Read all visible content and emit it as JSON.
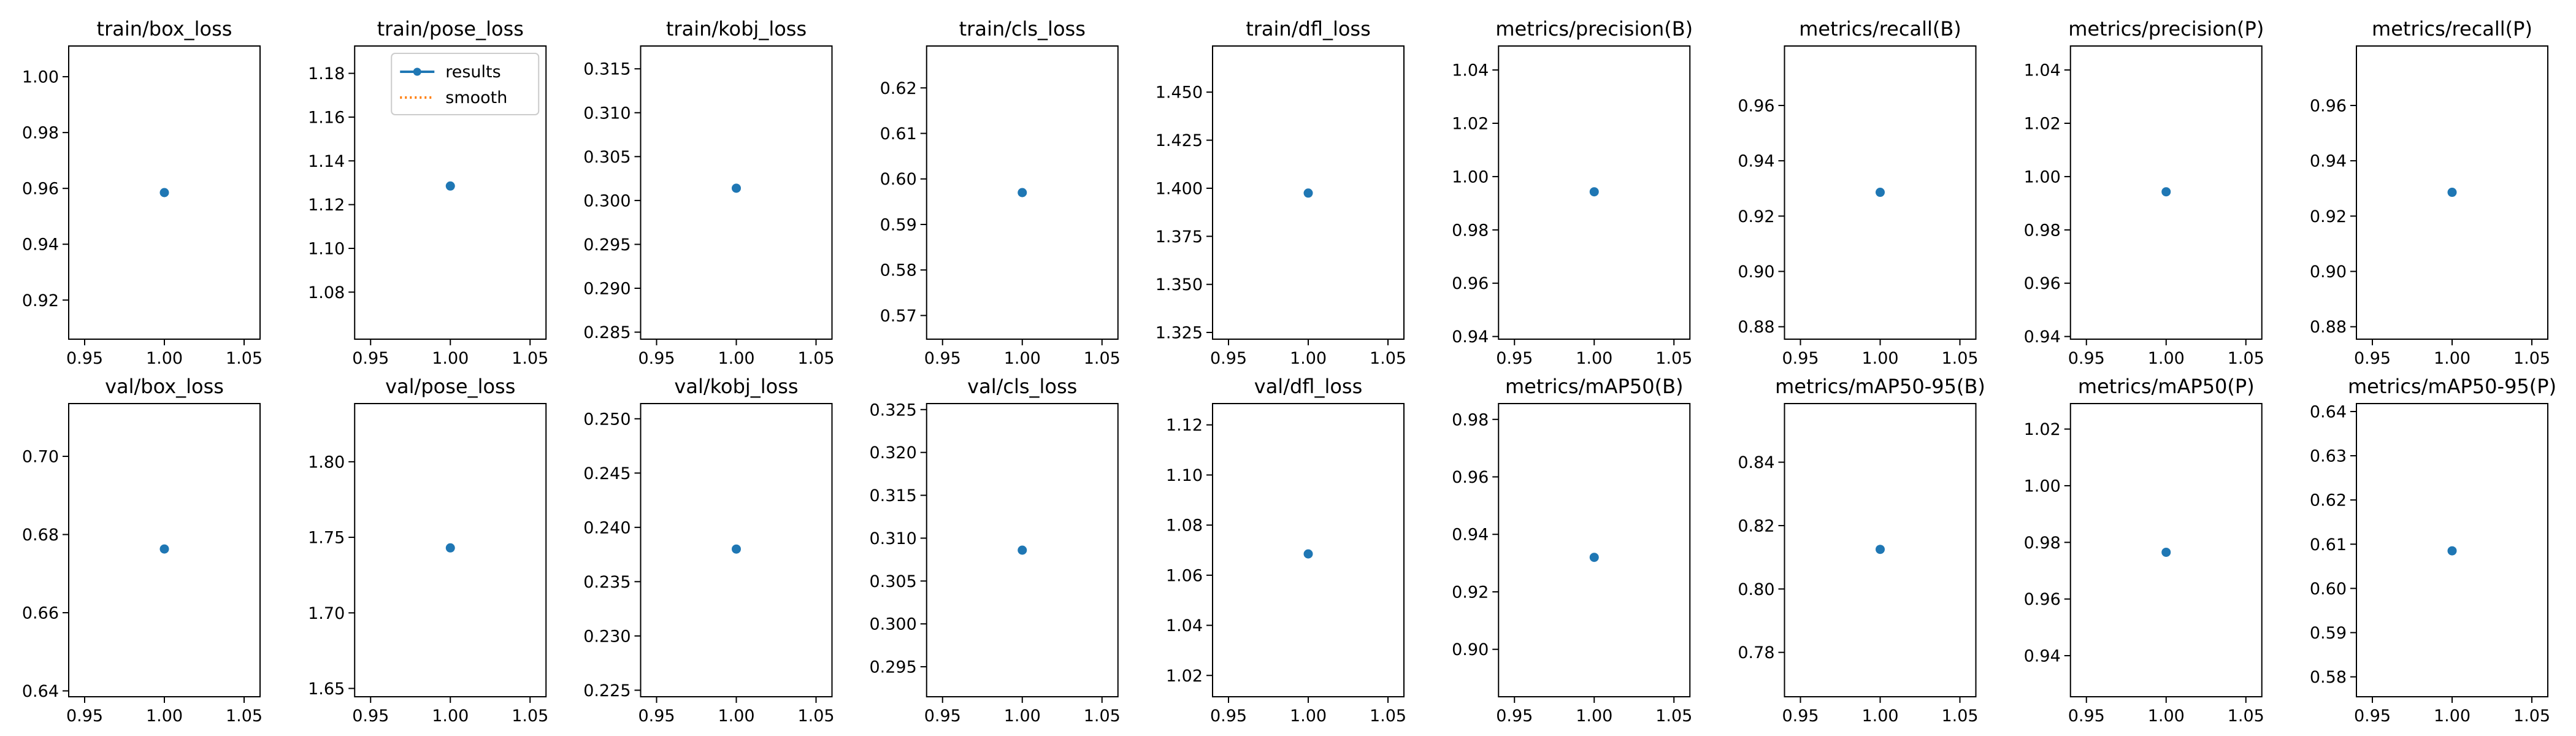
{
  "figure": {
    "colors": {
      "results": "#1f77b4",
      "smooth": "#ff7f0e",
      "axes": "#000000",
      "background": "#ffffff"
    },
    "legend": {
      "panel_index": 1,
      "placement": "upper-right",
      "entries": [
        {
          "label": "results",
          "style": "line-with-marker",
          "color": "#1f77b4"
        },
        {
          "label": "smooth",
          "style": "dotted-line",
          "color": "#ff7f0e"
        }
      ]
    }
  },
  "chart_data": [
    {
      "type": "scatter",
      "title": "train/box_loss",
      "x": [
        1.0
      ],
      "y": [
        0.9585
      ],
      "xlim": [
        0.94,
        1.06
      ],
      "ylim": [
        0.906,
        1.011
      ],
      "xticks": [
        0.95,
        1.0,
        1.05
      ],
      "xtick_labels": [
        "0.95",
        "1.00",
        "1.05"
      ],
      "yticks": [
        0.92,
        0.94,
        0.96,
        0.98,
        1.0
      ],
      "ytick_labels": [
        "0.92",
        "0.94",
        "0.96",
        "0.98",
        "1.00"
      ]
    },
    {
      "type": "scatter",
      "title": "train/pose_loss",
      "x": [
        1.0
      ],
      "y": [
        1.1285
      ],
      "xlim": [
        0.94,
        1.06
      ],
      "ylim": [
        1.0585,
        1.1925
      ],
      "xticks": [
        0.95,
        1.0,
        1.05
      ],
      "xtick_labels": [
        "0.95",
        "1.00",
        "1.05"
      ],
      "yticks": [
        1.08,
        1.1,
        1.12,
        1.14,
        1.16,
        1.18
      ],
      "ytick_labels": [
        "1.08",
        "1.10",
        "1.12",
        "1.14",
        "1.16",
        "1.18"
      ],
      "series": [
        {
          "name": "results"
        },
        {
          "name": "smooth"
        }
      ]
    },
    {
      "type": "scatter",
      "title": "train/kobj_loss",
      "x": [
        1.0
      ],
      "y": [
        0.3014
      ],
      "xlim": [
        0.94,
        1.06
      ],
      "ylim": [
        0.2842,
        0.3176
      ],
      "xticks": [
        0.95,
        1.0,
        1.05
      ],
      "xtick_labels": [
        "0.95",
        "1.00",
        "1.05"
      ],
      "yticks": [
        0.285,
        0.29,
        0.295,
        0.3,
        0.305,
        0.31,
        0.315
      ],
      "ytick_labels": [
        "0.285",
        "0.290",
        "0.295",
        "0.300",
        "0.305",
        "0.310",
        "0.315"
      ]
    },
    {
      "type": "scatter",
      "title": "train/cls_loss",
      "x": [
        1.0
      ],
      "y": [
        0.597
      ],
      "xlim": [
        0.94,
        1.06
      ],
      "ylim": [
        0.5648,
        0.6292
      ],
      "xticks": [
        0.95,
        1.0,
        1.05
      ],
      "xtick_labels": [
        "0.95",
        "1.00",
        "1.05"
      ],
      "yticks": [
        0.57,
        0.58,
        0.59,
        0.6,
        0.61,
        0.62
      ],
      "ytick_labels": [
        "0.57",
        "0.58",
        "0.59",
        "0.60",
        "0.61",
        "0.62"
      ]
    },
    {
      "type": "scatter",
      "title": "train/dfl_loss",
      "x": [
        1.0
      ],
      "y": [
        1.3975
      ],
      "xlim": [
        0.94,
        1.06
      ],
      "ylim": [
        1.3215,
        1.474
      ],
      "xticks": [
        0.95,
        1.0,
        1.05
      ],
      "xtick_labels": [
        "0.95",
        "1.00",
        "1.05"
      ],
      "yticks": [
        1.325,
        1.35,
        1.375,
        1.4,
        1.425,
        1.45
      ],
      "ytick_labels": [
        "1.325",
        "1.350",
        "1.375",
        "1.400",
        "1.425",
        "1.450"
      ]
    },
    {
      "type": "scatter",
      "title": "metrics/precision(B)",
      "x": [
        1.0
      ],
      "y": [
        0.9943
      ],
      "xlim": [
        0.94,
        1.06
      ],
      "ylim": [
        0.939,
        1.049
      ],
      "xticks": [
        0.95,
        1.0,
        1.05
      ],
      "xtick_labels": [
        "0.95",
        "1.00",
        "1.05"
      ],
      "yticks": [
        0.94,
        0.96,
        0.98,
        1.0,
        1.02,
        1.04
      ],
      "ytick_labels": [
        "0.94",
        "0.96",
        "0.98",
        "1.00",
        "1.02",
        "1.04"
      ]
    },
    {
      "type": "scatter",
      "title": "metrics/recall(B)",
      "x": [
        1.0
      ],
      "y": [
        0.9286
      ],
      "xlim": [
        0.94,
        1.06
      ],
      "ylim": [
        0.8755,
        0.9815
      ],
      "xticks": [
        0.95,
        1.0,
        1.05
      ],
      "xtick_labels": [
        "0.95",
        "1.00",
        "1.05"
      ],
      "yticks": [
        0.88,
        0.9,
        0.92,
        0.94,
        0.96
      ],
      "ytick_labels": [
        "0.88",
        "0.90",
        "0.92",
        "0.94",
        "0.96"
      ]
    },
    {
      "type": "scatter",
      "title": "metrics/precision(P)",
      "x": [
        1.0
      ],
      "y": [
        0.9943
      ],
      "xlim": [
        0.94,
        1.06
      ],
      "ylim": [
        0.939,
        1.049
      ],
      "xticks": [
        0.95,
        1.0,
        1.05
      ],
      "xtick_labels": [
        "0.95",
        "1.00",
        "1.05"
      ],
      "yticks": [
        0.94,
        0.96,
        0.98,
        1.0,
        1.02,
        1.04
      ],
      "ytick_labels": [
        "0.94",
        "0.96",
        "0.98",
        "1.00",
        "1.02",
        "1.04"
      ]
    },
    {
      "type": "scatter",
      "title": "metrics/recall(P)",
      "x": [
        1.0
      ],
      "y": [
        0.9286
      ],
      "xlim": [
        0.94,
        1.06
      ],
      "ylim": [
        0.8755,
        0.9815
      ],
      "xticks": [
        0.95,
        1.0,
        1.05
      ],
      "xtick_labels": [
        "0.95",
        "1.00",
        "1.05"
      ],
      "yticks": [
        0.88,
        0.9,
        0.92,
        0.94,
        0.96
      ],
      "ytick_labels": [
        "0.88",
        "0.90",
        "0.92",
        "0.94",
        "0.96"
      ]
    },
    {
      "type": "scatter",
      "title": "val/box_loss",
      "x": [
        1.0
      ],
      "y": [
        0.6763
      ],
      "xlim": [
        0.94,
        1.06
      ],
      "ylim": [
        0.6385,
        0.7135
      ],
      "xticks": [
        0.95,
        1.0,
        1.05
      ],
      "xtick_labels": [
        "0.95",
        "1.00",
        "1.05"
      ],
      "yticks": [
        0.64,
        0.66,
        0.68,
        0.7
      ],
      "ytick_labels": [
        "0.64",
        "0.66",
        "0.68",
        "0.70"
      ]
    },
    {
      "type": "scatter",
      "title": "val/pose_loss",
      "x": [
        1.0
      ],
      "y": [
        1.743
      ],
      "xlim": [
        0.94,
        1.06
      ],
      "ylim": [
        1.6445,
        1.8385
      ],
      "xticks": [
        0.95,
        1.0,
        1.05
      ],
      "xtick_labels": [
        "0.95",
        "1.00",
        "1.05"
      ],
      "yticks": [
        1.65,
        1.7,
        1.75,
        1.8
      ],
      "ytick_labels": [
        "1.65",
        "1.70",
        "1.75",
        "1.80"
      ]
    },
    {
      "type": "scatter",
      "title": "val/kobj_loss",
      "x": [
        1.0
      ],
      "y": [
        0.238
      ],
      "xlim": [
        0.94,
        1.06
      ],
      "ylim": [
        0.2244,
        0.2514
      ],
      "xticks": [
        0.95,
        1.0,
        1.05
      ],
      "xtick_labels": [
        "0.95",
        "1.00",
        "1.05"
      ],
      "yticks": [
        0.225,
        0.23,
        0.235,
        0.24,
        0.245,
        0.25
      ],
      "ytick_labels": [
        "0.225",
        "0.230",
        "0.235",
        "0.240",
        "0.245",
        "0.250"
      ]
    },
    {
      "type": "scatter",
      "title": "val/cls_loss",
      "x": [
        1.0
      ],
      "y": [
        0.3086
      ],
      "xlim": [
        0.94,
        1.06
      ],
      "ylim": [
        0.2915,
        0.3257
      ],
      "xticks": [
        0.95,
        1.0,
        1.05
      ],
      "xtick_labels": [
        "0.95",
        "1.00",
        "1.05"
      ],
      "yticks": [
        0.295,
        0.3,
        0.305,
        0.31,
        0.315,
        0.32,
        0.325
      ],
      "ytick_labels": [
        "0.295",
        "0.300",
        "0.305",
        "0.310",
        "0.315",
        "0.320",
        "0.325"
      ]
    },
    {
      "type": "scatter",
      "title": "val/dfl_loss",
      "x": [
        1.0
      ],
      "y": [
        1.0685
      ],
      "xlim": [
        0.94,
        1.06
      ],
      "ylim": [
        1.0115,
        1.1285
      ],
      "xticks": [
        0.95,
        1.0,
        1.05
      ],
      "xtick_labels": [
        "0.95",
        "1.00",
        "1.05"
      ],
      "yticks": [
        1.02,
        1.04,
        1.06,
        1.08,
        1.1,
        1.12
      ],
      "ytick_labels": [
        "1.02",
        "1.04",
        "1.06",
        "1.08",
        "1.10",
        "1.12"
      ]
    },
    {
      "type": "scatter",
      "title": "metrics/mAP50(B)",
      "x": [
        1.0
      ],
      "y": [
        0.932
      ],
      "xlim": [
        0.94,
        1.06
      ],
      "ylim": [
        0.8835,
        0.9855
      ],
      "xticks": [
        0.95,
        1.0,
        1.05
      ],
      "xtick_labels": [
        "0.95",
        "1.00",
        "1.05"
      ],
      "yticks": [
        0.9,
        0.92,
        0.94,
        0.96,
        0.98
      ],
      "ytick_labels": [
        "0.90",
        "0.92",
        "0.94",
        "0.96",
        "0.98"
      ]
    },
    {
      "type": "scatter",
      "title": "metrics/mAP50-95(B)",
      "x": [
        1.0
      ],
      "y": [
        0.8125
      ],
      "xlim": [
        0.94,
        1.06
      ],
      "ylim": [
        0.766,
        0.8585
      ],
      "xticks": [
        0.95,
        1.0,
        1.05
      ],
      "xtick_labels": [
        "0.95",
        "1.00",
        "1.05"
      ],
      "yticks": [
        0.78,
        0.8,
        0.82,
        0.84
      ],
      "ytick_labels": [
        "0.78",
        "0.80",
        "0.82",
        "0.84"
      ]
    },
    {
      "type": "scatter",
      "title": "metrics/mAP50(P)",
      "x": [
        1.0
      ],
      "y": [
        0.9765
      ],
      "xlim": [
        0.94,
        1.06
      ],
      "ylim": [
        0.9255,
        1.029
      ],
      "xticks": [
        0.95,
        1.0,
        1.05
      ],
      "xtick_labels": [
        "0.95",
        "1.00",
        "1.05"
      ],
      "yticks": [
        0.94,
        0.96,
        0.98,
        1.0,
        1.02
      ],
      "ytick_labels": [
        "0.94",
        "0.96",
        "0.98",
        "1.00",
        "1.02"
      ]
    },
    {
      "type": "scatter",
      "title": "metrics/mAP50-95(P)",
      "x": [
        1.0
      ],
      "y": [
        0.6085
      ],
      "xlim": [
        0.94,
        1.06
      ],
      "ylim": [
        0.5755,
        0.6418
      ],
      "xticks": [
        0.95,
        1.0,
        1.05
      ],
      "xtick_labels": [
        "0.95",
        "1.00",
        "1.05"
      ],
      "yticks": [
        0.58,
        0.59,
        0.6,
        0.61,
        0.62,
        0.63,
        0.64
      ],
      "ytick_labels": [
        "0.58",
        "0.59",
        "0.60",
        "0.61",
        "0.62",
        "0.63",
        "0.64"
      ]
    }
  ]
}
